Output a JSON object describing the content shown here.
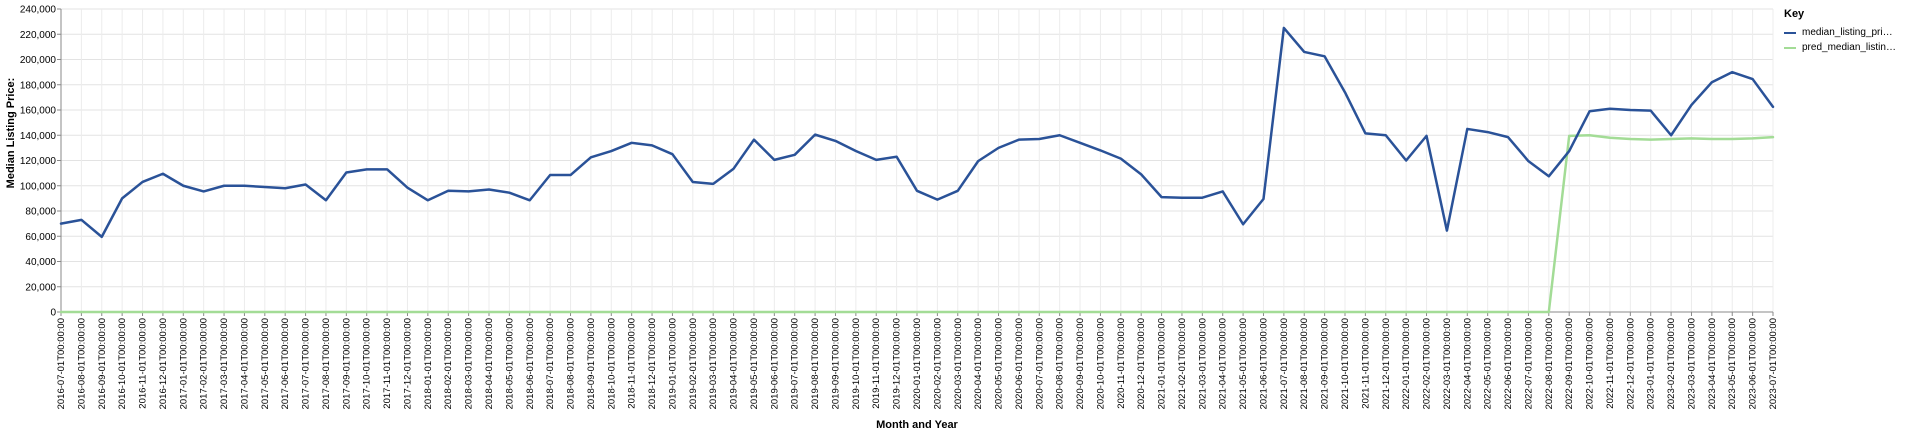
{
  "chart_data": {
    "type": "line",
    "xlabel": "Month and Year",
    "ylabel": "Median Listing Price:",
    "ylim": [
      0,
      240000
    ],
    "yticks": [
      0,
      20000,
      40000,
      60000,
      80000,
      100000,
      120000,
      140000,
      160000,
      180000,
      200000,
      220000,
      240000
    ],
    "ytick_labels": [
      "0",
      "20,000",
      "40,000",
      "60,000",
      "80,000",
      "100,000",
      "120,000",
      "140,000",
      "160,000",
      "180,000",
      "200,000",
      "220,000",
      "240,000"
    ],
    "grid": true,
    "legend": {
      "title": "Key",
      "placement": "right"
    },
    "categories": [
      "2016-07-01T00:00:00",
      "2016-08-01T00:00:00",
      "2016-09-01T00:00:00",
      "2016-10-01T00:00:00",
      "2016-11-01T00:00:00",
      "2016-12-01T00:00:00",
      "2017-01-01T00:00:00",
      "2017-02-01T00:00:00",
      "2017-03-01T00:00:00",
      "2017-04-01T00:00:00",
      "2017-05-01T00:00:00",
      "2017-06-01T00:00:00",
      "2017-07-01T00:00:00",
      "2017-08-01T00:00:00",
      "2017-09-01T00:00:00",
      "2017-10-01T00:00:00",
      "2017-11-01T00:00:00",
      "2017-12-01T00:00:00",
      "2018-01-01T00:00:00",
      "2018-02-01T00:00:00",
      "2018-03-01T00:00:00",
      "2018-04-01T00:00:00",
      "2018-05-01T00:00:00",
      "2018-06-01T00:00:00",
      "2018-07-01T00:00:00",
      "2018-08-01T00:00:00",
      "2018-09-01T00:00:00",
      "2018-10-01T00:00:00",
      "2018-11-01T00:00:00",
      "2018-12-01T00:00:00",
      "2019-01-01T00:00:00",
      "2019-02-01T00:00:00",
      "2019-03-01T00:00:00",
      "2019-04-01T00:00:00",
      "2019-05-01T00:00:00",
      "2019-06-01T00:00:00",
      "2019-07-01T00:00:00",
      "2019-08-01T00:00:00",
      "2019-09-01T00:00:00",
      "2019-10-01T00:00:00",
      "2019-11-01T00:00:00",
      "2019-12-01T00:00:00",
      "2020-01-01T00:00:00",
      "2020-02-01T00:00:00",
      "2020-03-01T00:00:00",
      "2020-04-01T00:00:00",
      "2020-05-01T00:00:00",
      "2020-06-01T00:00:00",
      "2020-07-01T00:00:00",
      "2020-08-01T00:00:00",
      "2020-09-01T00:00:00",
      "2020-10-01T00:00:00",
      "2020-11-01T00:00:00",
      "2020-12-01T00:00:00",
      "2021-01-01T00:00:00",
      "2021-02-01T00:00:00",
      "2021-03-01T00:00:00",
      "2021-04-01T00:00:00",
      "2021-05-01T00:00:00",
      "2021-06-01T00:00:00",
      "2021-07-01T00:00:00",
      "2021-08-01T00:00:00",
      "2021-09-01T00:00:00",
      "2021-10-01T00:00:00",
      "2021-11-01T00:00:00",
      "2021-12-01T00:00:00",
      "2022-01-01T00:00:00",
      "2022-02-01T00:00:00",
      "2022-03-01T00:00:00",
      "2022-04-01T00:00:00",
      "2022-05-01T00:00:00",
      "2022-06-01T00:00:00",
      "2022-07-01T00:00:00",
      "2022-08-01T00:00:00",
      "2022-09-01T00:00:00",
      "2022-10-01T00:00:00",
      "2022-11-01T00:00:00",
      "2022-12-01T00:00:00",
      "2023-01-01T00:00:00",
      "2023-02-01T00:00:00",
      "2023-03-01T00:00:00",
      "2023-04-01T00:00:00",
      "2023-05-01T00:00:00",
      "2023-06-01T00:00:00",
      "2023-07-01T00:00:00"
    ],
    "series": [
      {
        "name": "median_listing_pri…",
        "color": "#2a5298",
        "values": [
          70000,
          73000,
          59500,
          90000,
          103000,
          109500,
          100000,
          95500,
          100000,
          100000,
          99000,
          98000,
          101000,
          88500,
          110500,
          113000,
          113000,
          98500,
          88500,
          96000,
          95500,
          97000,
          94500,
          88500,
          108500,
          108500,
          122500,
          127500,
          134000,
          132000,
          125000,
          103000,
          101500,
          113500,
          136500,
          120500,
          124500,
          140500,
          135500,
          127500,
          120500,
          123000,
          96000,
          89000,
          96000,
          119500,
          130000,
          136500,
          137000,
          140000,
          134000,
          128000,
          121500,
          109000,
          91000,
          90500,
          90500,
          95500,
          69500,
          89500,
          225000,
          206000,
          202500,
          174000,
          141500,
          140000,
          120000,
          139500,
          64500,
          145000,
          142500,
          138500,
          119500,
          107500,
          127500,
          159000,
          161000,
          160000,
          159500,
          140000,
          164000,
          182000,
          190000,
          184500,
          162500
        ]
      },
      {
        "name": "pred_median_listin…",
        "color": "#a3dc96",
        "values": [
          0,
          0,
          0,
          0,
          0,
          0,
          0,
          0,
          0,
          0,
          0,
          0,
          0,
          0,
          0,
          0,
          0,
          0,
          0,
          0,
          0,
          0,
          0,
          0,
          0,
          0,
          0,
          0,
          0,
          0,
          0,
          0,
          0,
          0,
          0,
          0,
          0,
          0,
          0,
          0,
          0,
          0,
          0,
          0,
          0,
          0,
          0,
          0,
          0,
          0,
          0,
          0,
          0,
          0,
          0,
          0,
          0,
          0,
          0,
          0,
          0,
          0,
          0,
          0,
          0,
          0,
          0,
          0,
          0,
          0,
          0,
          0,
          0,
          0,
          139500,
          140000,
          138000,
          137000,
          136500,
          137000,
          137500,
          137000,
          137000,
          137500,
          138500
        ]
      }
    ]
  }
}
